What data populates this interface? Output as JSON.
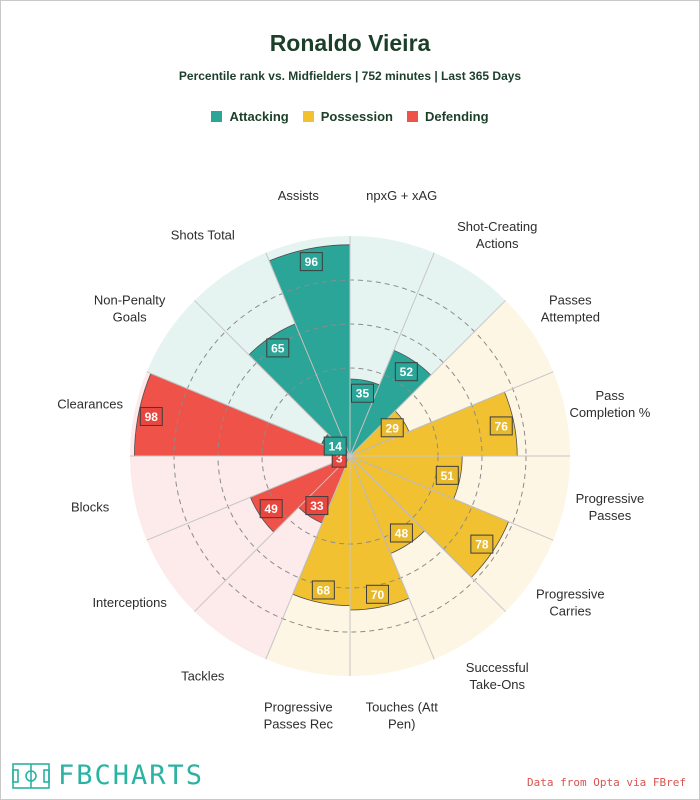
{
  "chart_data": {
    "type": "radar",
    "title": "Ronaldo Vieira",
    "subtitle": "Percentile rank vs. Midfielders | 752 minutes | Last 365 Days",
    "range": [
      0,
      100
    ],
    "legend": [
      {
        "name": "Attacking",
        "color": "#2aa597"
      },
      {
        "name": "Possession",
        "color": "#f2c131"
      },
      {
        "name": "Defending",
        "color": "#ee5249"
      }
    ],
    "categories": [
      {
        "label": "npxG + xAG",
        "value": 35,
        "group": "Attacking"
      },
      {
        "label": "Shot-Creating Actions",
        "value": 52,
        "group": "Attacking"
      },
      {
        "label": "Passes Attempted",
        "value": 29,
        "group": "Possession"
      },
      {
        "label": "Pass Completion %",
        "value": 76,
        "group": "Possession"
      },
      {
        "label": "Progressive Passes",
        "value": 51,
        "group": "Possession"
      },
      {
        "label": "Progressive Carries",
        "value": 78,
        "group": "Possession"
      },
      {
        "label": "Successful Take-Ons",
        "value": 48,
        "group": "Possession"
      },
      {
        "label": "Touches (Att Pen)",
        "value": 70,
        "group": "Possession"
      },
      {
        "label": "Progressive Passes Rec",
        "value": 68,
        "group": "Possession"
      },
      {
        "label": "Tackles",
        "value": 33,
        "group": "Defending"
      },
      {
        "label": "Interceptions",
        "value": 49,
        "group": "Defending"
      },
      {
        "label": "Blocks",
        "value": 3,
        "group": "Defending"
      },
      {
        "label": "Clearances",
        "value": 98,
        "group": "Defending"
      },
      {
        "label": "Non-Penalty Goals",
        "value": 14,
        "group": "Attacking"
      },
      {
        "label": "Shots Total",
        "value": 65,
        "group": "Attacking"
      },
      {
        "label": "Assists",
        "value": 96,
        "group": "Attacking"
      }
    ]
  },
  "group_styles": {
    "Attacking": {
      "fill": "#2aa597",
      "bg": "#e6f4f1",
      "label_bg": "#2aa597"
    },
    "Possession": {
      "fill": "#f2c131",
      "bg": "#fdf6e4",
      "label_bg": "#e8b92c"
    },
    "Defending": {
      "fill": "#ee5249",
      "bg": "#fcebea",
      "label_bg": "#e8473f"
    }
  },
  "footer": {
    "logo": "FBCHARTS",
    "credit": "Data from Opta via FBref"
  }
}
